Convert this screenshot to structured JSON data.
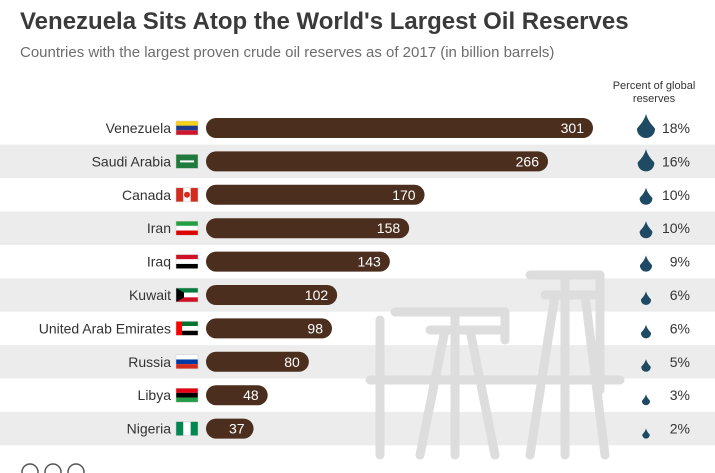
{
  "title": "Venezuela Sits Atop the World's Largest Oil Reserves",
  "subtitle": "Countries with the largest proven crude oil reserves as of 2017 (in billion barrels)",
  "percent_header": "Percent of global reserves",
  "colors": {
    "bar": "#4b2e1e",
    "stripe": "#ececec",
    "drop": "#1f4a64"
  },
  "chart_data": {
    "type": "bar",
    "orientation": "horizontal",
    "categories": [
      "Venezuela",
      "Saudi Arabia",
      "Canada",
      "Iran",
      "Iraq",
      "Kuwait",
      "United Arab Emirates",
      "Russia",
      "Libya",
      "Nigeria"
    ],
    "values": [
      301,
      266,
      170,
      158,
      143,
      102,
      98,
      80,
      48,
      37
    ],
    "percent_labels": [
      "18%",
      "16%",
      "10%",
      "10%",
      "9%",
      "6%",
      "6%",
      "5%",
      "3%",
      "2%"
    ],
    "percent_values": [
      18,
      16,
      10,
      10,
      9,
      6,
      6,
      5,
      3,
      2
    ],
    "xlim": [
      0,
      301
    ],
    "grid": false,
    "legend": "none"
  }
}
